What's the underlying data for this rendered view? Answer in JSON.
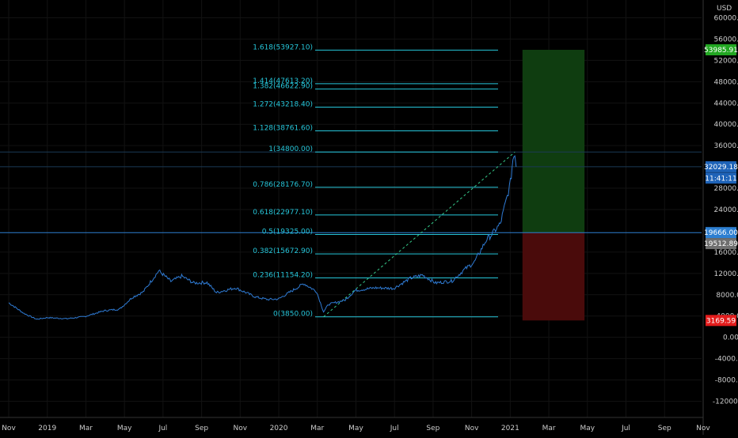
{
  "currency": "USD",
  "colors": {
    "background": "#000000",
    "price_line": "#2f7bd4",
    "fib": "#26c6da",
    "grid": "#121212",
    "target_zone": "#0f3d10",
    "stop_zone": "#4a0b0b",
    "tag_green": "#22a722",
    "tag_blue": "#1e63b8",
    "tag_lightblue": "#2d7fd1",
    "tag_gray": "#6f6f6f",
    "tag_red": "#e31c1c"
  },
  "chart_data": {
    "type": "line",
    "title": "",
    "xlabel": "",
    "ylabel": "",
    "ylim": [
      -14000,
      62000
    ],
    "x_ticks": [
      "Nov",
      "2019",
      "Mar",
      "May",
      "Jul",
      "Sep",
      "Nov",
      "2020",
      "Mar",
      "May",
      "Jul",
      "Sep",
      "Nov",
      "2021",
      "Mar",
      "May",
      "Jul",
      "Sep",
      "Nov"
    ],
    "y_ticks": [
      "60000.00",
      "56000.00",
      "52000.00",
      "48000.00",
      "44000.00",
      "40000.00",
      "36000.00",
      "28000.00",
      "24000.00",
      "16000.00",
      "12000.00",
      "8000.00",
      "4000.00",
      "0.00",
      "-4000.00",
      "-8000.00",
      "-12000.00"
    ],
    "series": [
      {
        "x": [
          "2018-11-01",
          "2018-11-25",
          "2018-12-15",
          "2019-01-01",
          "2019-02-01",
          "2019-03-01",
          "2019-04-01",
          "2019-04-25",
          "2019-05-15",
          "2019-06-01",
          "2019-06-26",
          "2019-07-15",
          "2019-08-01",
          "2019-08-20",
          "2019-09-10",
          "2019-09-25",
          "2019-10-25",
          "2019-11-25",
          "2019-12-15",
          "2020-01-01",
          "2020-02-10",
          "2020-03-01",
          "2020-03-12",
          "2020-03-20",
          "2020-04-15",
          "2020-05-01",
          "2020-06-01",
          "2020-07-01",
          "2020-07-27",
          "2020-08-15",
          "2020-09-05",
          "2020-10-01",
          "2020-10-21",
          "2020-11-05",
          "2020-11-25",
          "2020-12-01",
          "2020-12-16",
          "2020-12-27",
          "2021-01-01",
          "2021-01-05",
          "2021-01-08",
          "2021-01-10"
        ],
        "values": [
          6500,
          4500,
          3400,
          3700,
          3500,
          3900,
          5000,
          5300,
          7500,
          8500,
          12500,
          10500,
          11500,
          10200,
          10300,
          8400,
          9300,
          7600,
          7100,
          7200,
          10100,
          8600,
          4800,
          6200,
          7000,
          8800,
          9300,
          9200,
          11100,
          11700,
          10200,
          10600,
          12800,
          14100,
          18500,
          19100,
          21300,
          26500,
          29000,
          33500,
          34800,
          32029.18
        ]
      }
    ],
    "fib_levels": [
      {
        "label": "1.618(53927.10)",
        "value": 53927.1
      },
      {
        "label": "1.414(47613.20)",
        "value": 47613.2
      },
      {
        "label": "1.382(46622.90)",
        "value": 46622.9
      },
      {
        "label": "1.272(43218.40)",
        "value": 43218.4
      },
      {
        "label": "1.128(38761.60)",
        "value": 38761.6
      },
      {
        "label": "1(34800.00)",
        "value": 34800
      },
      {
        "label": "0.786(28176.70)",
        "value": 28176.7
      },
      {
        "label": "0.618(22977.10)",
        "value": 22977.1
      },
      {
        "label": "0.5(19325.00)",
        "value": 19325
      },
      {
        "label": "0.382(15672.90)",
        "value": 15672.9
      },
      {
        "label": "0.236(11154.20)",
        "value": 11154.2
      },
      {
        "label": "0(3850.00)",
        "value": 3850
      }
    ],
    "trend_line": {
      "from": {
        "x": "2020-03-12",
        "y": 3850
      },
      "to": {
        "x": "2021-01-08",
        "y": 34800
      }
    },
    "position": {
      "entry": 19666,
      "target": 53985.91,
      "stop": 3169.59,
      "start": "2021-01-20",
      "end": "2021-04-28"
    },
    "horizontal_lines": [
      34800,
      32029.18,
      19666
    ],
    "price_tags": [
      {
        "label": "53985.91",
        "value": 53985.91,
        "color": "#22a722"
      },
      {
        "label": "32029.18",
        "value": 32029.18,
        "color": "#1e63b8"
      },
      {
        "label": "11:41:11",
        "value": 29900,
        "color": "#1e63b8"
      },
      {
        "label": "19666.00",
        "value": 19666,
        "color": "#2d7fd1"
      },
      {
        "label": "19512.89",
        "value": 17600,
        "color": "#6f6f6f"
      },
      {
        "label": "3169.59",
        "value": 3169.59,
        "color": "#e31c1c"
      }
    ]
  }
}
